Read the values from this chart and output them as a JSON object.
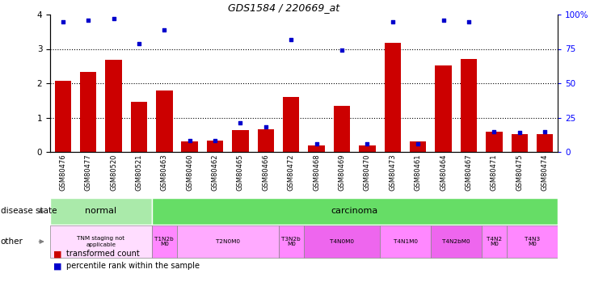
{
  "title": "GDS1584 / 220669_at",
  "samples": [
    "GSM80476",
    "GSM80477",
    "GSM80520",
    "GSM80521",
    "GSM80463",
    "GSM80460",
    "GSM80462",
    "GSM80465",
    "GSM80466",
    "GSM80472",
    "GSM80468",
    "GSM80469",
    "GSM80470",
    "GSM80473",
    "GSM80461",
    "GSM80464",
    "GSM80467",
    "GSM80471",
    "GSM80475",
    "GSM80474"
  ],
  "transformed_count": [
    2.07,
    2.32,
    2.68,
    1.47,
    1.79,
    0.31,
    0.33,
    0.63,
    0.67,
    1.6,
    0.2,
    1.35,
    0.19,
    3.17,
    0.3,
    2.52,
    2.7,
    0.58,
    0.52,
    0.52
  ],
  "percentile_rank_pct": [
    95,
    96,
    97,
    79,
    89,
    8,
    8,
    21,
    18,
    82,
    6,
    74,
    6,
    95,
    6,
    96,
    95,
    15,
    14,
    15
  ],
  "bar_color": "#cc0000",
  "dot_color": "#0000cc",
  "tnm_stages": [
    {
      "label": "TNM staging not\napplicable",
      "start": 0,
      "end": 3,
      "color": "#ffddff"
    },
    {
      "label": "T1N2b\nM0",
      "start": 4,
      "end": 4,
      "color": "#ff88ff"
    },
    {
      "label": "T2N0M0",
      "start": 5,
      "end": 8,
      "color": "#ffaaff"
    },
    {
      "label": "T3N2b\nM0",
      "start": 9,
      "end": 9,
      "color": "#ff88ff"
    },
    {
      "label": "T4N0M0",
      "start": 10,
      "end": 12,
      "color": "#ee66ee"
    },
    {
      "label": "T4N1M0",
      "start": 13,
      "end": 14,
      "color": "#ff88ff"
    },
    {
      "label": "T4N2bM0",
      "start": 15,
      "end": 16,
      "color": "#ee66ee"
    },
    {
      "label": "T4N2\nM0",
      "start": 17,
      "end": 17,
      "color": "#ff88ff"
    },
    {
      "label": "T4N3\nM0",
      "start": 18,
      "end": 19,
      "color": "#ff88ff"
    }
  ],
  "legend_bar_label": "transformed count",
  "legend_dot_label": "percentile rank within the sample"
}
